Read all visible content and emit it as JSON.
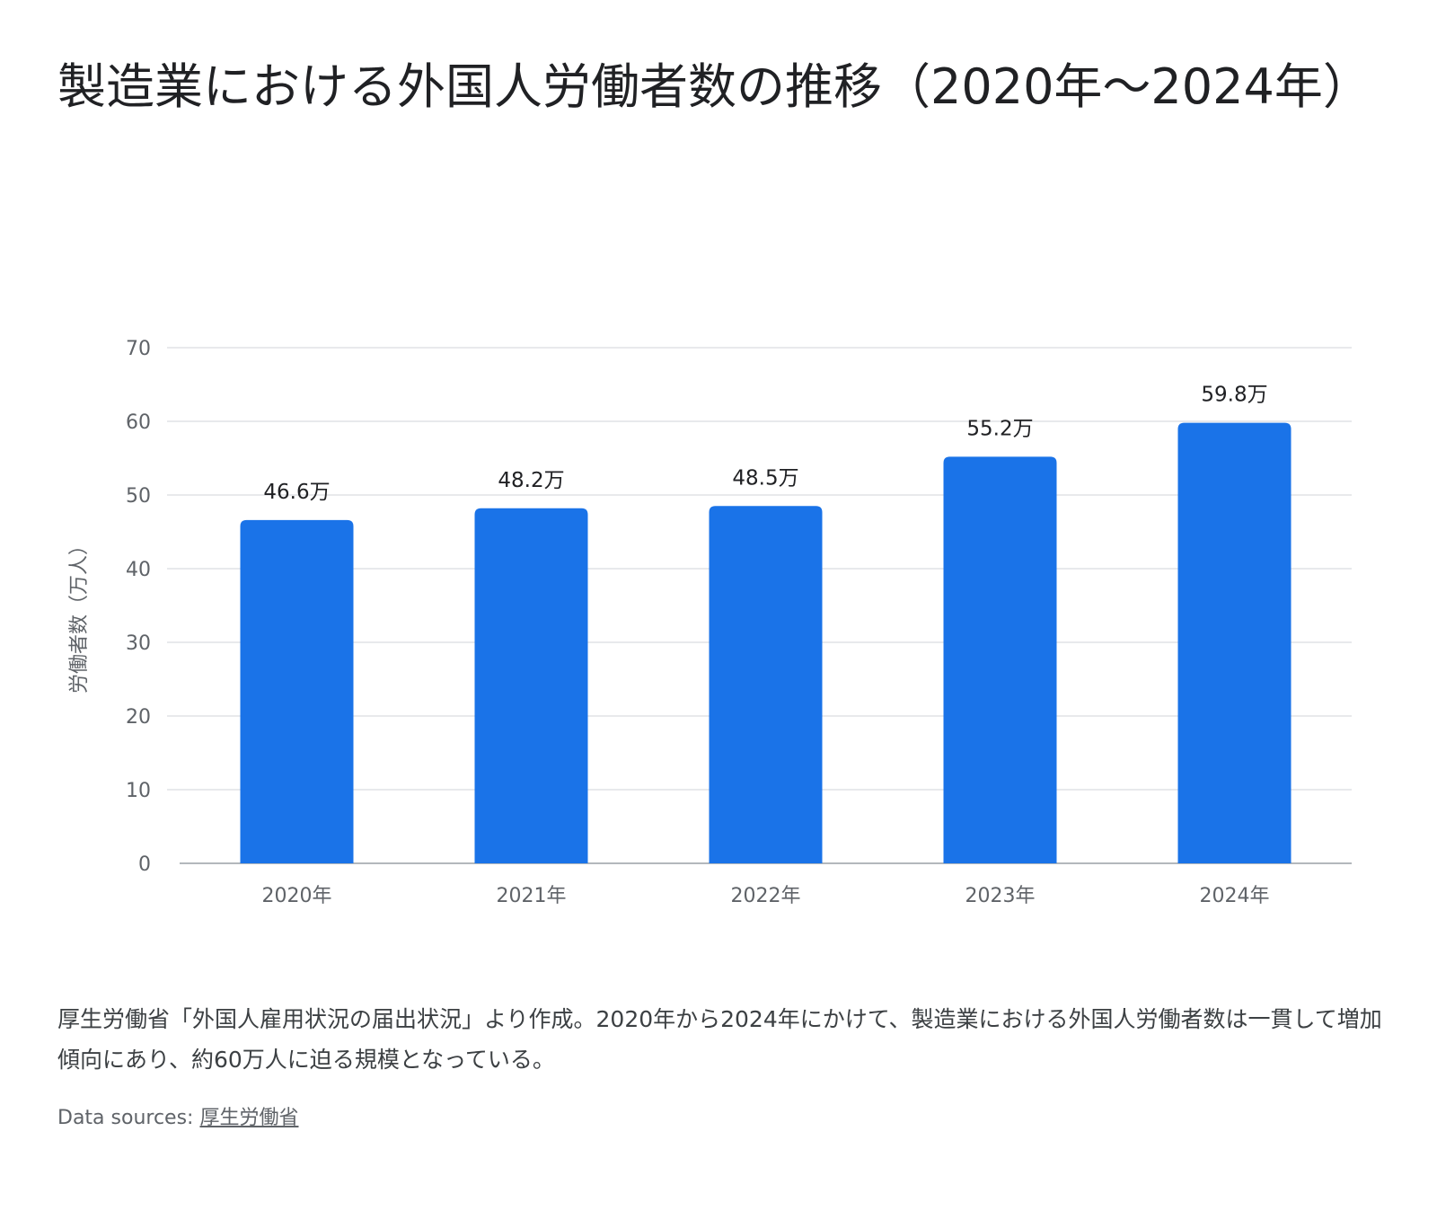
{
  "title": "製造業における外国人労働者数の推移（2020年〜2024年）",
  "chart_data": {
    "type": "bar",
    "categories": [
      "2020年",
      "2021年",
      "2022年",
      "2023年",
      "2024年"
    ],
    "values": [
      46.6,
      48.2,
      48.5,
      55.2,
      59.8
    ],
    "data_labels": [
      "46.6万",
      "48.2万",
      "48.5万",
      "55.2万",
      "59.8万"
    ],
    "ylabel": "労働者数（万人）",
    "xlabel": "",
    "ylim": [
      0,
      70
    ],
    "yticks": [
      0,
      10,
      20,
      30,
      40,
      50,
      60,
      70
    ],
    "grid": true,
    "bar_color": "#1a73e8",
    "grid_color": "#dadce0"
  },
  "description": "厚生労働省「外国人雇用状況の届出状況」より作成。2020年から2024年にかけて、製造業における外国人労働者数は一貫して増加傾向にあり、約60万人に迫る規模となっている。",
  "sources": {
    "prefix": "Data sources:",
    "link": "厚生労働省"
  }
}
